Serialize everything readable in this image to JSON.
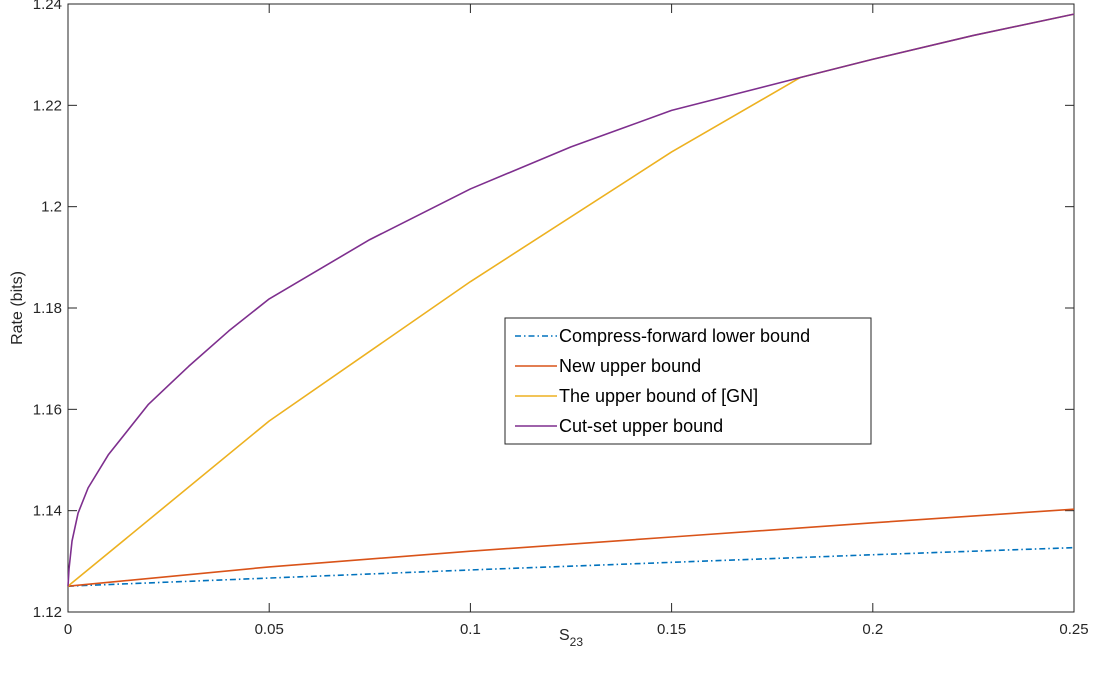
{
  "chart_data": {
    "type": "line",
    "title": "",
    "xlabel": "S",
    "xlabel_sub": "23",
    "ylabel": "Rate (bits)",
    "xlim": [
      0,
      0.25
    ],
    "ylim": [
      1.12,
      1.24
    ],
    "xticks": [
      0,
      0.05,
      0.1,
      0.15,
      0.2,
      0.25
    ],
    "xtick_labels": [
      "0",
      "0.05",
      "0.1",
      "0.15",
      "0.2",
      "0.25"
    ],
    "yticks": [
      1.12,
      1.14,
      1.16,
      1.18,
      1.2,
      1.22,
      1.24
    ],
    "ytick_labels": [
      "1.12",
      "1.14",
      "1.16",
      "1.18",
      "1.2",
      "1.22",
      "1.24"
    ],
    "grid": false,
    "legend_position": "center-right",
    "series": [
      {
        "name": "Compress-forward lower bound",
        "color": "#0072BD",
        "style": "dashdot",
        "x": [
          0,
          0.05,
          0.1,
          0.15,
          0.2,
          0.25
        ],
        "y": [
          1.1251,
          1.1267,
          1.1283,
          1.1298,
          1.1313,
          1.1327
        ]
      },
      {
        "name": "New upper bound",
        "color": "#D95319",
        "style": "solid",
        "x": [
          0,
          0.05,
          0.1,
          0.15,
          0.2,
          0.25
        ],
        "y": [
          1.1251,
          1.1289,
          1.132,
          1.1348,
          1.1376,
          1.1403
        ]
      },
      {
        "name": "The upper bound of [GN]",
        "color": "#EDB120",
        "style": "solid",
        "x": [
          0,
          0.05,
          0.1,
          0.15,
          0.182,
          0.2,
          0.225,
          0.25
        ],
        "y": [
          1.1251,
          1.1577,
          1.1852,
          1.2108,
          1.2255,
          1.2291,
          1.2338,
          1.238
        ]
      },
      {
        "name": "Cut-set upper bound",
        "color": "#7E2F8E",
        "style": "solid",
        "x": [
          0,
          0.00025,
          0.001,
          0.0025,
          0.005,
          0.01,
          0.02,
          0.03,
          0.04,
          0.05,
          0.075,
          0.1,
          0.125,
          0.15,
          0.182,
          0.2,
          0.225,
          0.25
        ],
        "y": [
          1.1251,
          1.1285,
          1.134,
          1.1395,
          1.1445,
          1.151,
          1.161,
          1.1685,
          1.1755,
          1.1818,
          1.1935,
          1.2035,
          1.2118,
          1.219,
          1.2255,
          1.2291,
          1.2338,
          1.238
        ]
      }
    ]
  }
}
